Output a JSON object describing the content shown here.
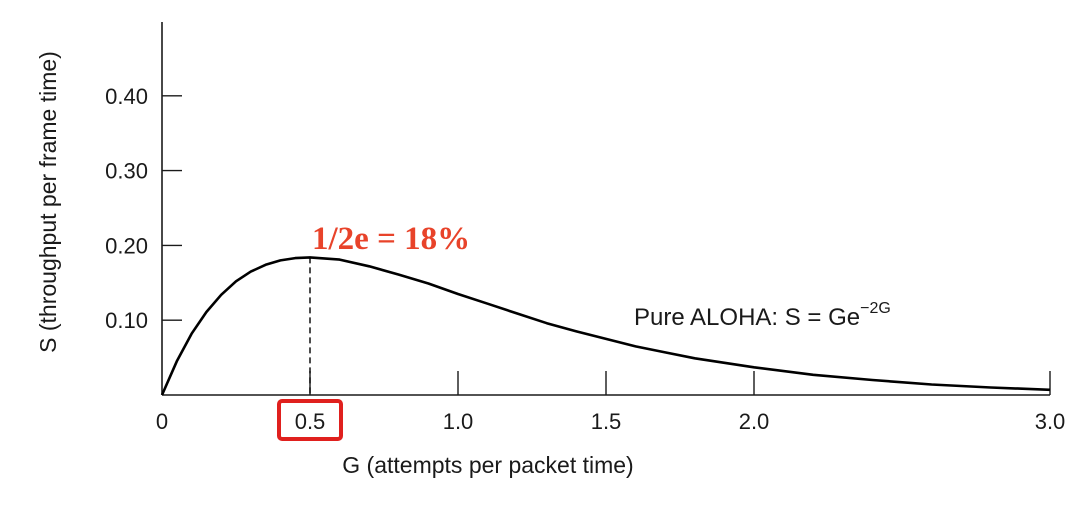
{
  "chart_data": {
    "type": "line",
    "xlabel": "G (attempts per packet time)",
    "ylabel": "S (throughput per frame time)",
    "xlim": [
      0,
      3.0
    ],
    "ylim": [
      0,
      0.4
    ],
    "x_ticks": [
      {
        "value": 0,
        "label": "0"
      },
      {
        "value": 0.5,
        "label": "0.5"
      },
      {
        "value": 1.0,
        "label": "1.0"
      },
      {
        "value": 1.5,
        "label": "1.5"
      },
      {
        "value": 2.0,
        "label": "2.0"
      },
      {
        "value": 3.0,
        "label": "3.0"
      }
    ],
    "y_ticks": [
      {
        "value": 0.1,
        "label": "0.10"
      },
      {
        "value": 0.2,
        "label": "0.20"
      },
      {
        "value": 0.3,
        "label": "0.30"
      },
      {
        "value": 0.4,
        "label": "0.40"
      }
    ],
    "highlighted_x_tick": "0.5",
    "series": [
      {
        "color": "#000000",
        "x": [
          0,
          0.05,
          0.1,
          0.15,
          0.2,
          0.25,
          0.3,
          0.35,
          0.4,
          0.45,
          0.5,
          0.6,
          0.7,
          0.8,
          0.9,
          1.0,
          1.1,
          1.2,
          1.3,
          1.4,
          1.5,
          1.6,
          1.7,
          1.8,
          1.9,
          2.0,
          2.2,
          2.4,
          2.6,
          2.8,
          3.0
        ],
        "y": [
          0,
          0.045,
          0.082,
          0.111,
          0.134,
          0.152,
          0.165,
          0.174,
          0.18,
          0.183,
          0.184,
          0.181,
          0.172,
          0.161,
          0.149,
          0.135,
          0.122,
          0.109,
          0.096,
          0.085,
          0.075,
          0.065,
          0.057,
          0.049,
          0.043,
          0.037,
          0.027,
          0.02,
          0.014,
          0.01,
          0.007
        ]
      }
    ],
    "peak": {
      "x": 0.5,
      "y": 0.184,
      "label": "1/2e = 18%"
    },
    "formula": {
      "text": "Pure ALOHA: S = Ge",
      "superscript": "−2G"
    }
  },
  "colors": {
    "axis": "#1a1a1a",
    "curve": "#000000",
    "peak_label": "#e8432a",
    "highlight_box": "#e0201e"
  }
}
